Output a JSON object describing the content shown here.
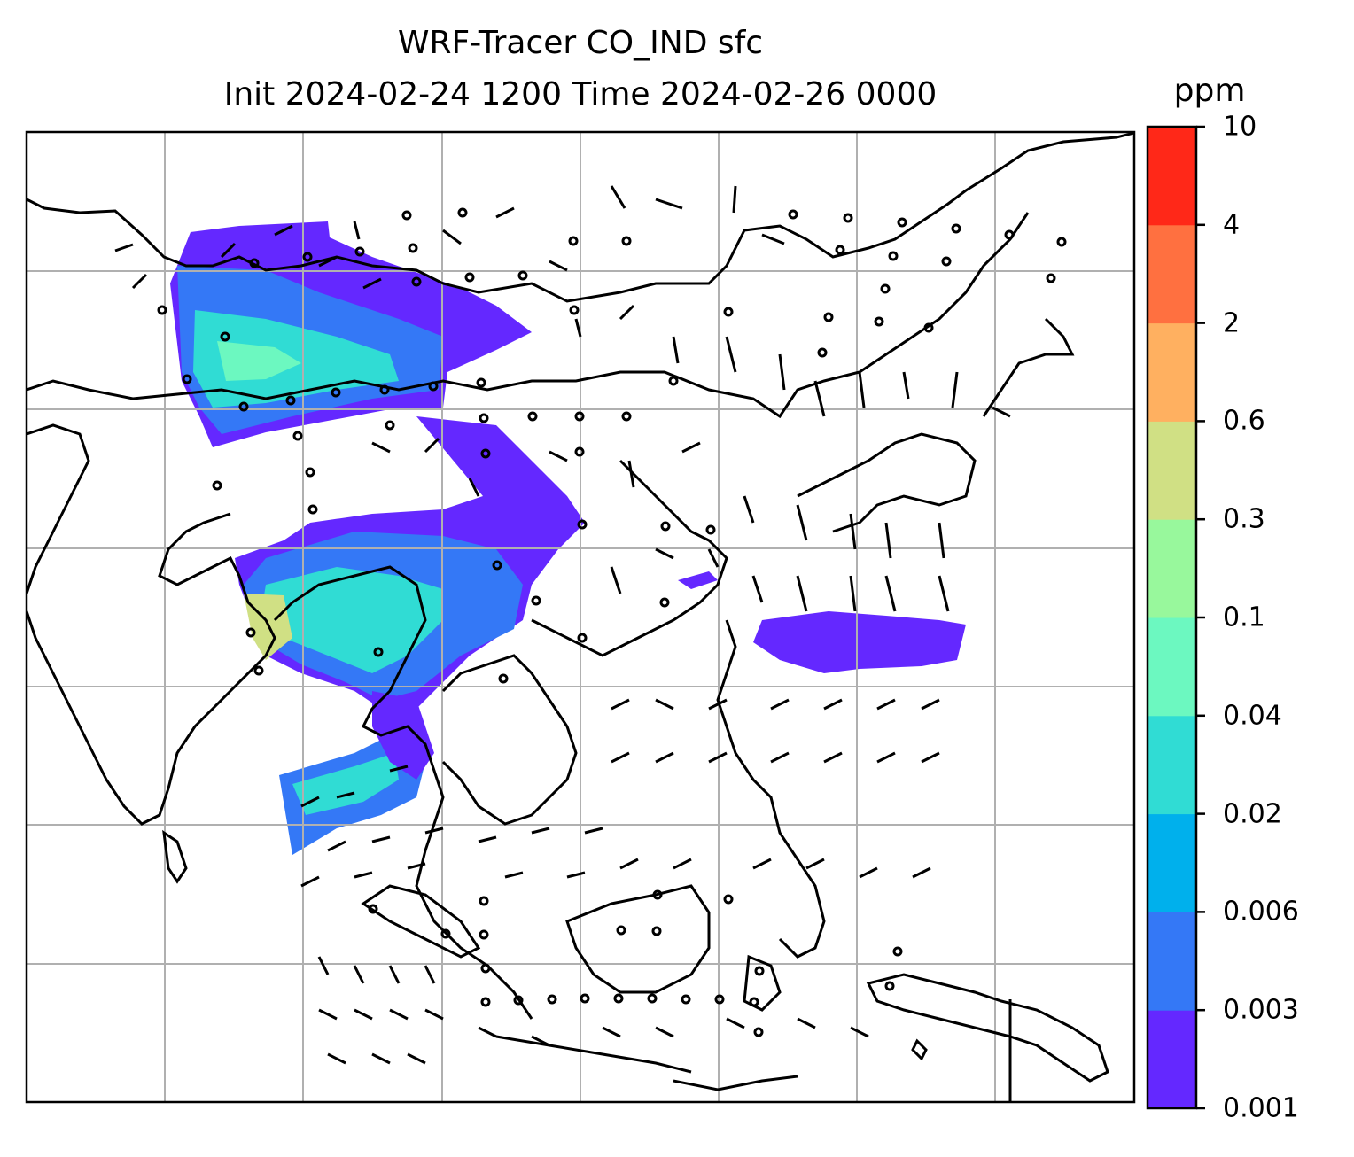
{
  "title_line1": "WRF-Tracer CO_IND sfc",
  "title_line2": "Init 2024-02-24 1200 Time 2024-02-26 0000",
  "colorbar": {
    "unit": "ppm",
    "levels": [
      "0.001",
      "0.003",
      "0.006",
      "0.02",
      "0.04",
      "0.1",
      "0.3",
      "0.6",
      "2",
      "4",
      "10"
    ],
    "colors": [
      "#6428ff",
      "#3478f6",
      "#00b0ec",
      "#30dcd4",
      "#6cf8c0",
      "#98f89c",
      "#d0e084",
      "#ffb060",
      "#ff7040",
      "#ff2818"
    ]
  },
  "map": {
    "gridlines": true,
    "coastline_color": "#000000",
    "grid_color": "#b0b0b0"
  }
}
